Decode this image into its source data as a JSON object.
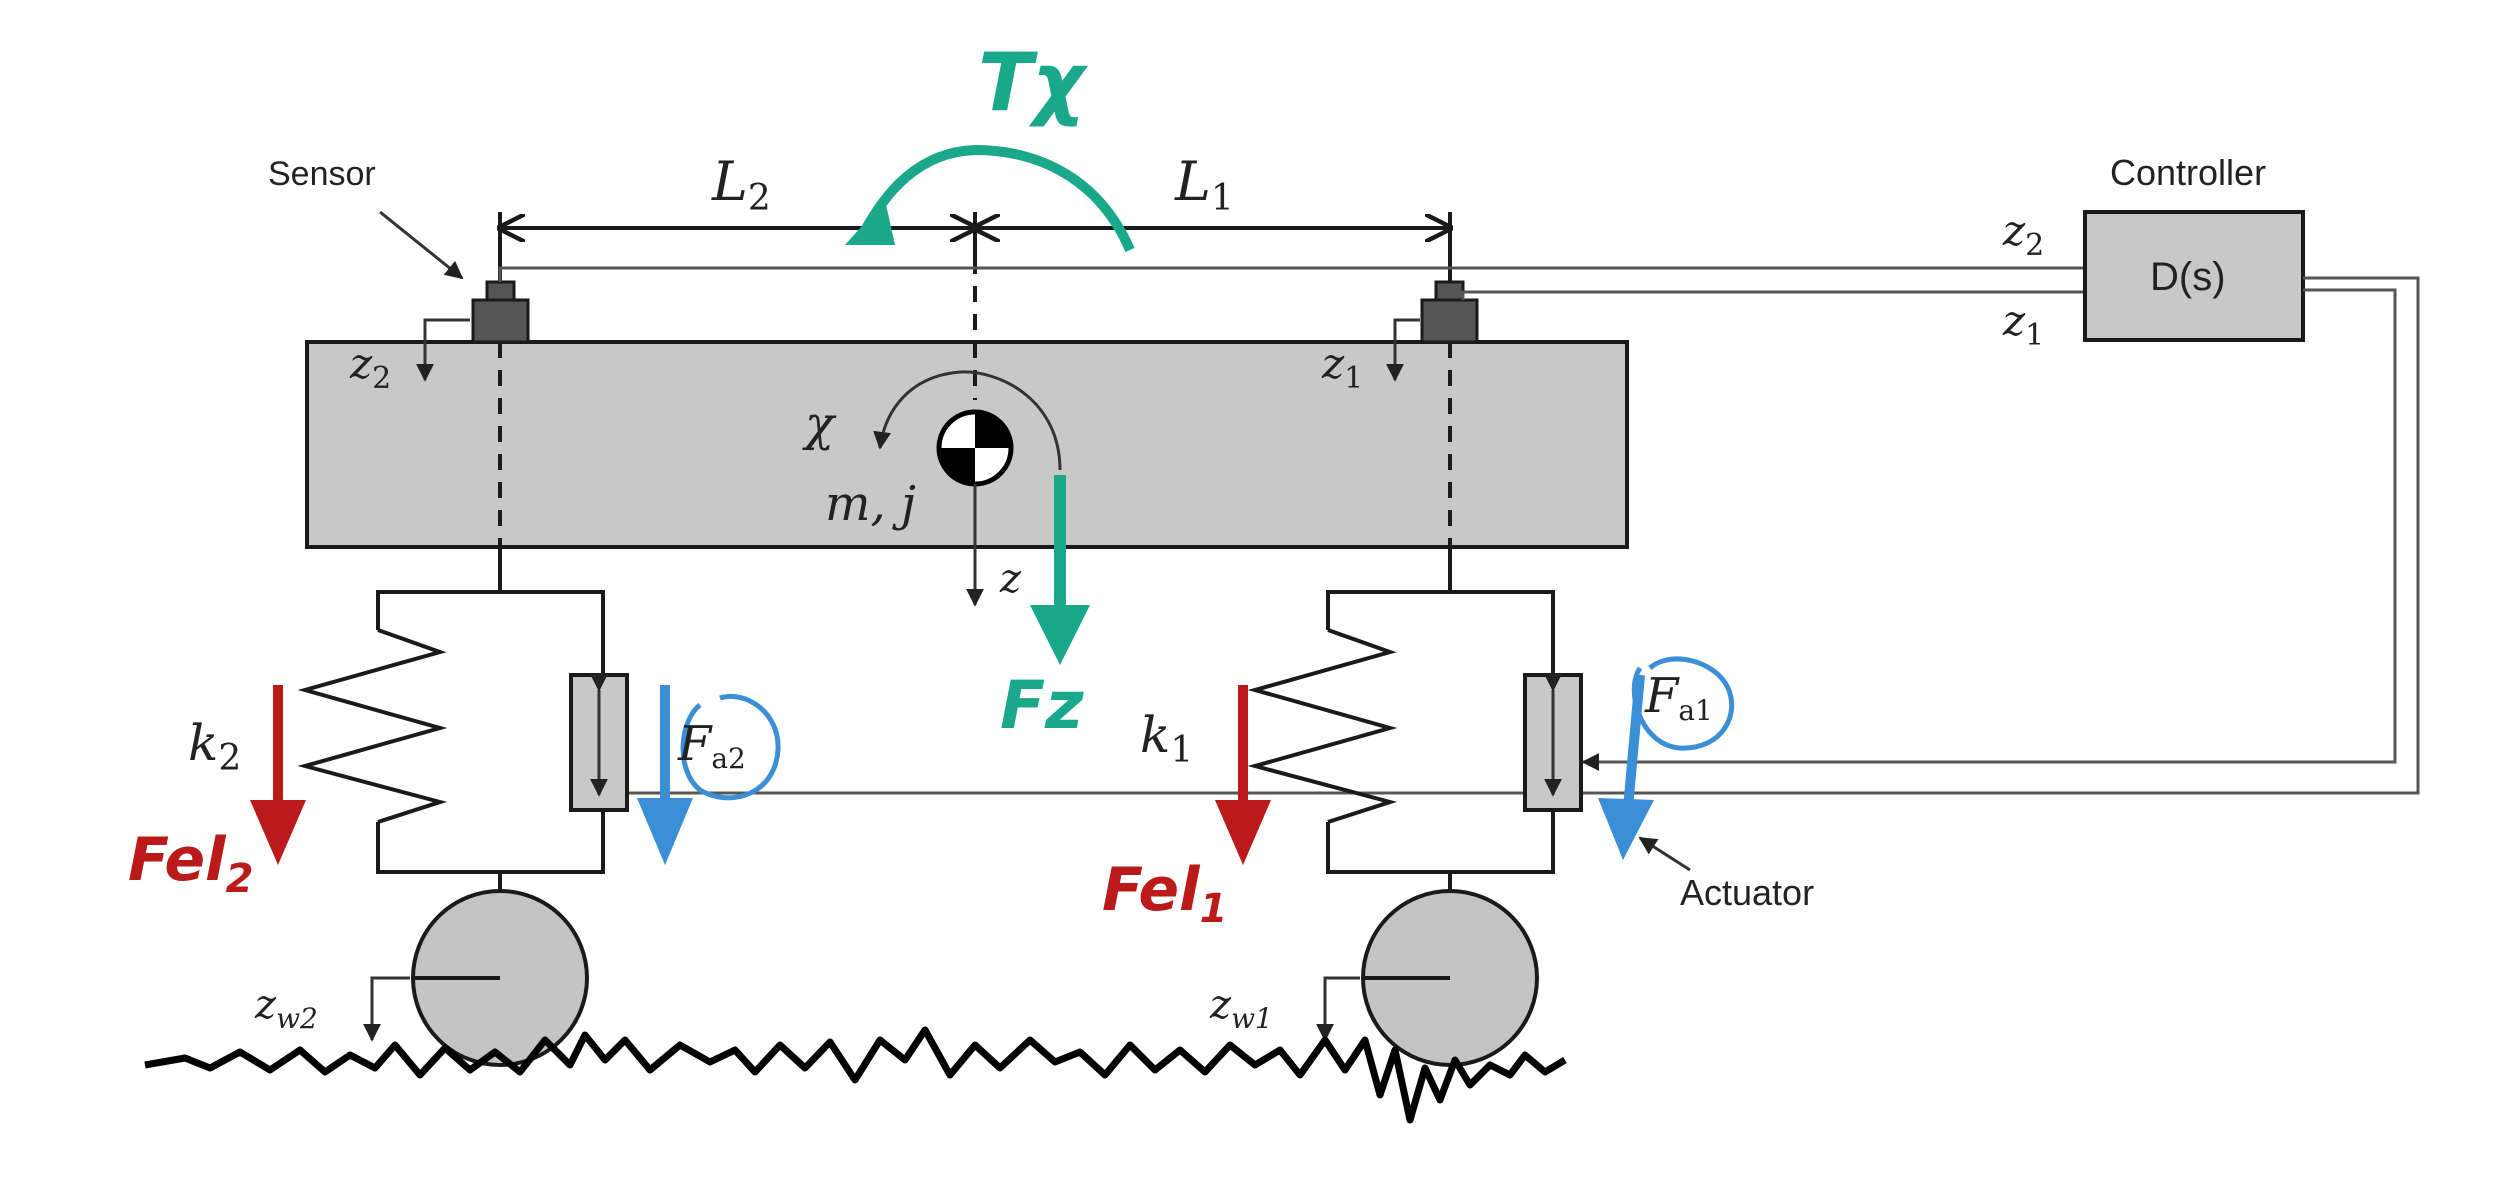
{
  "labels": {
    "sensor": "Sensor",
    "controller": "Controller",
    "controller_tf": "D(s)",
    "actuator": "Actuator",
    "L2": "L",
    "L2_sub": "2",
    "L1": "L",
    "L1_sub": "1",
    "z2_out": "z",
    "z2_out_sub": "2",
    "z1_out": "z",
    "z1_out_sub": "1",
    "z2_body": "z",
    "z2_body_sub": "2",
    "z1_body": "z",
    "z1_body_sub": "1",
    "chi": "χ",
    "mass": "m, j",
    "z_cog": "z",
    "k2": "k",
    "k2_sub": "2",
    "k1": "k",
    "k1_sub": "1",
    "zw2": "z",
    "zw2_sub": "w2",
    "zw1": "z",
    "zw1_sub": "w1"
  },
  "annotations": {
    "torque": "Tχ",
    "force_z": "Fz",
    "fel2": "Fel",
    "fel2_sub": "2",
    "fel1": "Fel",
    "fel1_sub": "1",
    "fa2": "F",
    "fa2_sub": "a2",
    "fa1": "F",
    "fa1_sub": "a1"
  },
  "colors": {
    "green": "#1aa88a",
    "red": "#bb1a1a",
    "blue": "#3a8fd6",
    "body_fill": "#c8c8c8",
    "wheel_fill": "#c4c4c4",
    "sensor_fill": "#555555"
  }
}
